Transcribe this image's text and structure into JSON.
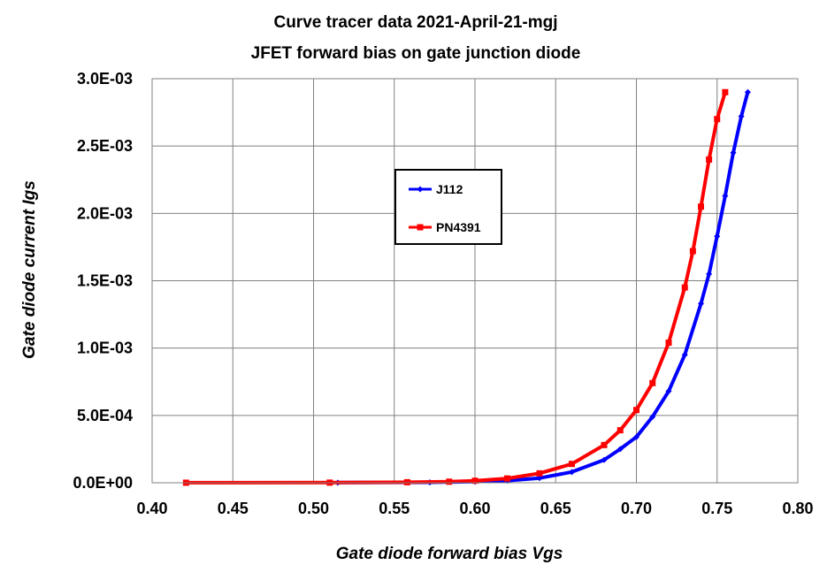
{
  "chart_data": {
    "type": "line",
    "title": "Curve tracer data 2021-April-21-mgj",
    "subtitle": "JFET forward bias on gate junction diode",
    "xlabel": "Gate diode forward bias Vgs",
    "ylabel": "Gate diode current Igs",
    "xlim": [
      0.4,
      0.8
    ],
    "ylim": [
      0,
      0.003
    ],
    "x_ticks": [
      "0.40",
      "0.45",
      "0.50",
      "0.55",
      "0.60",
      "0.65",
      "0.70",
      "0.75",
      "0.80"
    ],
    "y_ticks": [
      "0.0E+00",
      "5.0E-04",
      "1.0E-03",
      "1.5E-03",
      "2.0E-03",
      "2.5E-03",
      "3.0E-03"
    ],
    "grid": true,
    "legend": "center",
    "series": [
      {
        "name": "J112",
        "color": "#0000ff",
        "marker": "diamond",
        "x": [
          0.515,
          0.572,
          0.6,
          0.62,
          0.64,
          0.66,
          0.68,
          0.69,
          0.7,
          0.71,
          0.72,
          0.73,
          0.74,
          0.745,
          0.75,
          0.755,
          0.76,
          0.765,
          0.769
        ],
        "y": [
          1e-06,
          3e-06,
          8e-06,
          1.6e-05,
          3.5e-05,
          8e-05,
          0.00017,
          0.00025,
          0.00034,
          0.00049,
          0.00068,
          0.00095,
          0.00133,
          0.00155,
          0.00183,
          0.00213,
          0.00245,
          0.00272,
          0.0029
        ]
      },
      {
        "name": "PN4391",
        "color": "#ff0000",
        "marker": "square",
        "x": [
          0.421,
          0.51,
          0.558,
          0.584,
          0.6,
          0.62,
          0.64,
          0.66,
          0.68,
          0.69,
          0.7,
          0.71,
          0.72,
          0.73,
          0.735,
          0.74,
          0.745,
          0.75,
          0.755
        ],
        "y": [
          5e-07,
          1e-06,
          4e-06,
          8e-06,
          1.5e-05,
          3.2e-05,
          7e-05,
          0.00014,
          0.00028,
          0.00039,
          0.00054,
          0.00074,
          0.00104,
          0.00145,
          0.00172,
          0.00205,
          0.0024,
          0.0027,
          0.0029
        ]
      }
    ]
  }
}
